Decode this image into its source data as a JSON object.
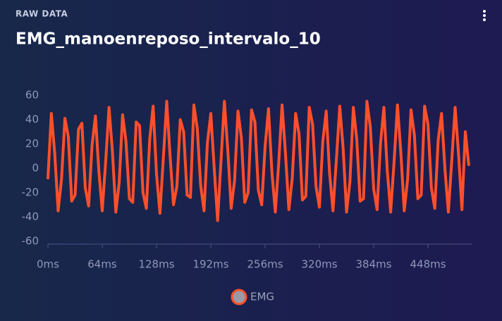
{
  "header": {
    "label": "RAW DATA"
  },
  "chart_data": {
    "type": "line",
    "title": "EMG_manoenreposo_intervalo_10",
    "x": [
      0,
      4,
      8,
      12,
      16,
      20,
      24,
      28,
      32,
      36,
      40,
      44,
      48,
      52,
      56,
      60,
      64,
      68,
      72,
      76,
      80,
      84,
      88,
      92,
      96,
      100,
      104,
      108,
      112,
      116,
      120,
      124,
      128,
      132,
      136,
      140,
      144,
      148,
      152,
      156,
      160,
      164,
      168,
      172,
      176,
      180,
      184,
      188,
      192,
      196,
      200,
      204,
      208,
      212,
      216,
      220,
      224,
      228,
      232,
      236,
      240,
      244,
      248,
      252,
      256,
      260,
      264,
      268,
      272,
      276,
      280,
      284,
      288,
      292,
      296,
      300,
      304,
      308,
      312,
      316,
      320,
      324,
      328,
      332,
      336,
      340,
      344,
      348,
      352,
      356,
      360,
      364,
      368,
      372,
      376,
      380,
      384,
      388,
      392,
      396,
      400,
      404,
      408,
      412,
      416,
      420,
      424,
      428,
      432,
      436,
      440,
      444,
      448,
      452,
      456,
      460,
      464,
      468,
      472,
      476,
      480,
      484,
      488,
      492,
      496
    ],
    "series": [
      {
        "name": "EMG",
        "color": "#ff4f2b",
        "values": [
          -8,
          45,
          12,
          -35,
          -9,
          41,
          26,
          -27,
          -22,
          32,
          37,
          -16,
          -31,
          19,
          43,
          -2,
          -35,
          5,
          50,
          14,
          -36,
          -12,
          44,
          22,
          -25,
          -28,
          38,
          35,
          -20,
          -33,
          24,
          51,
          -5,
          -37,
          8,
          55,
          10,
          -30,
          -15,
          40,
          30,
          -22,
          -24,
          52,
          33,
          -14,
          -35,
          21,
          45,
          0,
          -43,
          6,
          55,
          15,
          -33,
          -10,
          47,
          25,
          -28,
          -20,
          48,
          38,
          -18,
          -30,
          18,
          49,
          -3,
          -36,
          4,
          52,
          12,
          -34,
          -8,
          45,
          28,
          -26,
          -23,
          50,
          36,
          -15,
          -32,
          22,
          47,
          -4,
          -35,
          7,
          51,
          16,
          -36,
          -11,
          50,
          24,
          -27,
          -25,
          55,
          34,
          -17,
          -34,
          20,
          50,
          -2,
          -36,
          5,
          52,
          13,
          -35,
          -9,
          48,
          27,
          -25,
          -22,
          51,
          36,
          -16,
          -33,
          23,
          45,
          -1,
          -36,
          6,
          50,
          12,
          -34,
          30,
          3
        ]
      }
    ],
    "xlim": [
      0,
      500
    ],
    "xticks": [
      {
        "value": 0,
        "label": "0ms"
      },
      {
        "value": 64,
        "label": "64ms"
      },
      {
        "value": 128,
        "label": "128ms"
      },
      {
        "value": 192,
        "label": "192ms"
      },
      {
        "value": 256,
        "label": "256ms"
      },
      {
        "value": 320,
        "label": "320ms"
      },
      {
        "value": 384,
        "label": "384ms"
      },
      {
        "value": 448,
        "label": "448ms"
      }
    ],
    "ylim": [
      -60,
      60
    ],
    "yticks": [
      -60,
      -40,
      -20,
      0,
      20,
      40,
      60
    ],
    "grid": false,
    "legend": "bottom"
  }
}
